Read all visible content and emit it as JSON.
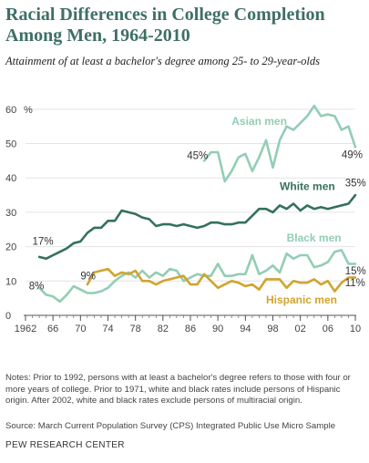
{
  "title": "Racial Differences in College Completion Among Men, 1964-2010",
  "subtitle": "Attainment of at least a bachelor's degree among 25- to 29-year-olds",
  "notes": "Notes: Prior to 1992, persons with at least a bachelor's degree refers to those with four or more years of college. Prior to 1971, white and black rates include persons of Hispanic origin. After 2002, white and black rates exclude persons of multiracial origin.",
  "source": "Source: March Current Population Survey (CPS) Integrated Public Use Micro Sample",
  "brand": "PEW RESEARCH CENTER",
  "chart_data": {
    "type": "line",
    "ylim": [
      0,
      65
    ],
    "xlim": [
      1962,
      2010
    ],
    "y_unit_label": "%",
    "y_ticks": [
      "0",
      "10",
      "20",
      "30",
      "40",
      "50",
      "60"
    ],
    "x_ticks": [
      {
        "value": 1962,
        "label": "1962"
      },
      {
        "value": 1966,
        "label": "66"
      },
      {
        "value": 1970,
        "label": "70"
      },
      {
        "value": 1974,
        "label": "74"
      },
      {
        "value": 1978,
        "label": "78"
      },
      {
        "value": 1982,
        "label": "82"
      },
      {
        "value": 1986,
        "label": "86"
      },
      {
        "value": 1990,
        "label": "90"
      },
      {
        "value": 1994,
        "label": "94"
      },
      {
        "value": 1998,
        "label": "98"
      },
      {
        "value": 2002,
        "label": "02"
      },
      {
        "value": 2006,
        "label": "06"
      },
      {
        "value": 2010,
        "label": "10"
      }
    ],
    "series": [
      {
        "name": "Asian men",
        "color": "#93cdb4",
        "points": [
          [
            1988,
            45
          ],
          [
            1989,
            47.5
          ],
          [
            1990,
            47.5
          ],
          [
            1991,
            39
          ],
          [
            1992,
            42
          ],
          [
            1993,
            46
          ],
          [
            1994,
            47
          ],
          [
            1995,
            42
          ],
          [
            1996,
            46
          ],
          [
            1997,
            51
          ],
          [
            1998,
            43
          ],
          [
            1999,
            51
          ],
          [
            2000,
            55
          ],
          [
            2001,
            54
          ],
          [
            2002,
            56
          ],
          [
            2003,
            58
          ],
          [
            2004,
            61
          ],
          [
            2005,
            58
          ],
          [
            2006,
            58.5
          ],
          [
            2007,
            58
          ],
          [
            2008,
            54
          ],
          [
            2009,
            55
          ],
          [
            2010,
            49
          ]
        ]
      },
      {
        "name": "White men",
        "color": "#35705f",
        "points": [
          [
            1964,
            17
          ],
          [
            1965,
            16.5
          ],
          [
            1966,
            17.5
          ],
          [
            1967,
            18.5
          ],
          [
            1968,
            19.5
          ],
          [
            1969,
            21
          ],
          [
            1970,
            21.5
          ],
          [
            1971,
            24
          ],
          [
            1972,
            25.5
          ],
          [
            1973,
            25.5
          ],
          [
            1974,
            27.5
          ],
          [
            1975,
            27.5
          ],
          [
            1976,
            30.5
          ],
          [
            1977,
            30
          ],
          [
            1978,
            29.5
          ],
          [
            1979,
            28.5
          ],
          [
            1980,
            28
          ],
          [
            1981,
            26
          ],
          [
            1982,
            26.5
          ],
          [
            1983,
            26.5
          ],
          [
            1984,
            26
          ],
          [
            1985,
            26.5
          ],
          [
            1986,
            26
          ],
          [
            1987,
            25.5
          ],
          [
            1988,
            26
          ],
          [
            1989,
            27
          ],
          [
            1990,
            27
          ],
          [
            1991,
            26.5
          ],
          [
            1992,
            26.5
          ],
          [
            1993,
            27
          ],
          [
            1994,
            27
          ],
          [
            1995,
            29
          ],
          [
            1996,
            31
          ],
          [
            1997,
            31
          ],
          [
            1998,
            30
          ],
          [
            1999,
            32
          ],
          [
            2000,
            31
          ],
          [
            2001,
            32.5
          ],
          [
            2002,
            30.5
          ],
          [
            2003,
            32
          ],
          [
            2004,
            31
          ],
          [
            2005,
            31.5
          ],
          [
            2006,
            31
          ],
          [
            2007,
            31.5
          ],
          [
            2008,
            32
          ],
          [
            2009,
            32.5
          ],
          [
            2010,
            35
          ]
        ]
      },
      {
        "name": "Black men",
        "color": "#93cdb4",
        "points": [
          [
            1964,
            8
          ],
          [
            1965,
            6
          ],
          [
            1966,
            5.5
          ],
          [
            1967,
            4
          ],
          [
            1968,
            6
          ],
          [
            1969,
            8.5
          ],
          [
            1970,
            7.5
          ],
          [
            1971,
            6.5
          ],
          [
            1972,
            6.5
          ],
          [
            1973,
            7
          ],
          [
            1974,
            8
          ],
          [
            1975,
            10
          ],
          [
            1976,
            11.5
          ],
          [
            1977,
            12.5
          ],
          [
            1978,
            11
          ],
          [
            1979,
            13
          ],
          [
            1980,
            11
          ],
          [
            1981,
            12.5
          ],
          [
            1982,
            11.5
          ],
          [
            1983,
            13.5
          ],
          [
            1984,
            13
          ],
          [
            1985,
            10
          ],
          [
            1986,
            11
          ],
          [
            1987,
            12
          ],
          [
            1988,
            11.5
          ],
          [
            1989,
            11.5
          ],
          [
            1990,
            15
          ],
          [
            1991,
            11.5
          ],
          [
            1992,
            11.5
          ],
          [
            1993,
            12
          ],
          [
            1994,
            12
          ],
          [
            1995,
            17.5
          ],
          [
            1996,
            12
          ],
          [
            1997,
            13
          ],
          [
            1998,
            14.5
          ],
          [
            1999,
            12.5
          ],
          [
            2000,
            18
          ],
          [
            2001,
            16.5
          ],
          [
            2002,
            17.5
          ],
          [
            2003,
            17.5
          ],
          [
            2004,
            14
          ],
          [
            2005,
            14.5
          ],
          [
            2006,
            15.5
          ],
          [
            2007,
            18.5
          ],
          [
            2008,
            19
          ],
          [
            2009,
            15
          ],
          [
            2010,
            15
          ]
        ]
      },
      {
        "name": "Hispanic men",
        "color": "#d0a42e",
        "points": [
          [
            1971,
            9
          ],
          [
            1972,
            12.5
          ],
          [
            1973,
            13
          ],
          [
            1974,
            13.5
          ],
          [
            1975,
            11.5
          ],
          [
            1976,
            12.5
          ],
          [
            1977,
            12
          ],
          [
            1978,
            13
          ],
          [
            1979,
            10
          ],
          [
            1980,
            10
          ],
          [
            1981,
            9
          ],
          [
            1982,
            10
          ],
          [
            1983,
            10.5
          ],
          [
            1984,
            11
          ],
          [
            1985,
            11.5
          ],
          [
            1986,
            9
          ],
          [
            1987,
            9
          ],
          [
            1988,
            12
          ],
          [
            1989,
            10
          ],
          [
            1990,
            8
          ],
          [
            1991,
            9
          ],
          [
            1992,
            10
          ],
          [
            1993,
            9.5
          ],
          [
            1994,
            8.5
          ],
          [
            1995,
            9
          ],
          [
            1996,
            7.5
          ],
          [
            1997,
            10.5
          ],
          [
            1998,
            10.5
          ],
          [
            1999,
            10.5
          ],
          [
            2000,
            8
          ],
          [
            2001,
            10
          ],
          [
            2002,
            9.5
          ],
          [
            2003,
            9.5
          ],
          [
            2004,
            10.5
          ],
          [
            2005,
            9
          ],
          [
            2006,
            10
          ],
          [
            2007,
            7
          ],
          [
            2008,
            9.5
          ],
          [
            2009,
            11
          ],
          [
            2010,
            11
          ]
        ]
      }
    ],
    "labels": [
      {
        "text": "Asian men",
        "series": "Asian men",
        "x": 1992,
        "y": 55.5,
        "color": "#93cdb4",
        "bold": true
      },
      {
        "text": "White men",
        "series": "White men",
        "x": 1999,
        "y": 36.5,
        "color": "#35705f",
        "bold": true
      },
      {
        "text": "Black men",
        "series": "Black men",
        "x": 2000,
        "y": 21.5,
        "color": "#93cdb4",
        "bold": true
      },
      {
        "text": "Hispanic men",
        "series": "Hispanic men",
        "x": 1997,
        "y": 3.5,
        "color": "#d0a42e",
        "bold": true
      }
    ],
    "value_labels": [
      {
        "text": "17%",
        "x": 1963,
        "y": 20.5
      },
      {
        "text": "8%",
        "x": 1962.5,
        "y": 7.5
      },
      {
        "text": "9%",
        "x": 1970,
        "y": 10.5
      },
      {
        "text": "45%",
        "x": 1985.5,
        "y": 45.5
      },
      {
        "text": "35%",
        "x": 2008.5,
        "y": 37.5
      },
      {
        "text": "49%",
        "x": 2008,
        "y": 45.8
      },
      {
        "text": "15%",
        "x": 2008.5,
        "y": 12
      },
      {
        "text": "11%",
        "x": 2008.5,
        "y": 8.5
      }
    ]
  }
}
